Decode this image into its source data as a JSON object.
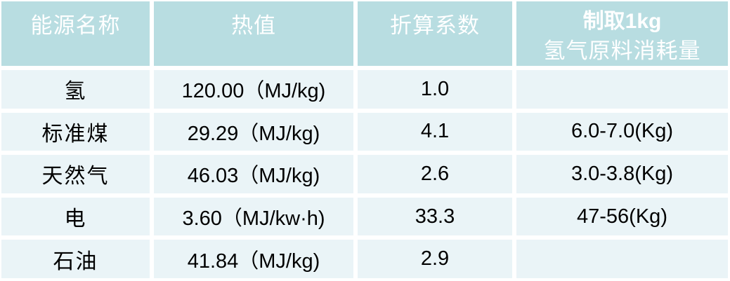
{
  "table": {
    "header": {
      "energy_name": "能源名称",
      "heat_value": "热值",
      "coefficient": "折算系数",
      "consumption_line1": "制取1kg",
      "consumption_line2": "氢气原料消耗量"
    },
    "rows": [
      {
        "name": "氢",
        "heat_value": "120.00（MJ/kg)",
        "coefficient": "1.0",
        "consumption": ""
      },
      {
        "name": "标准煤",
        "heat_value": "29.29（MJ/kg)",
        "coefficient": "4.1",
        "consumption": "6.0-7.0(Kg)"
      },
      {
        "name": "天然气",
        "heat_value": "46.03（MJ/kg)",
        "coefficient": "2.6",
        "consumption": "3.0-3.8(Kg)"
      },
      {
        "name": "电",
        "heat_value": "3.60（MJ/kw·h)",
        "coefficient": "33.3",
        "consumption": "47-56(Kg)"
      },
      {
        "name": "石油",
        "heat_value": "41.84（MJ/kg)",
        "coefficient": "2.9",
        "consumption": ""
      }
    ]
  },
  "colors": {
    "header_bg": "#b8dde1",
    "header_text": "#ffffff",
    "row_bg": "#eaf4f7",
    "gap": "#ffffff",
    "body_text": "#000000"
  },
  "chart_data": {
    "type": "table",
    "columns": [
      "能源名称",
      "热值",
      "折算系数",
      "制取1kg 氢气原料消耗量"
    ],
    "rows": [
      [
        "氢",
        "120.00（MJ/kg)",
        "1.0",
        ""
      ],
      [
        "标准煤",
        "29.29（MJ/kg)",
        "4.1",
        "6.0-7.0(Kg)"
      ],
      [
        "天然气",
        "46.03（MJ/kg)",
        "2.6",
        "3.0-3.8(Kg)"
      ],
      [
        "电",
        "3.60（MJ/kw·h)",
        "33.3",
        "47-56(Kg)"
      ],
      [
        "石油",
        "41.84（MJ/kg)",
        "2.9",
        ""
      ]
    ]
  }
}
